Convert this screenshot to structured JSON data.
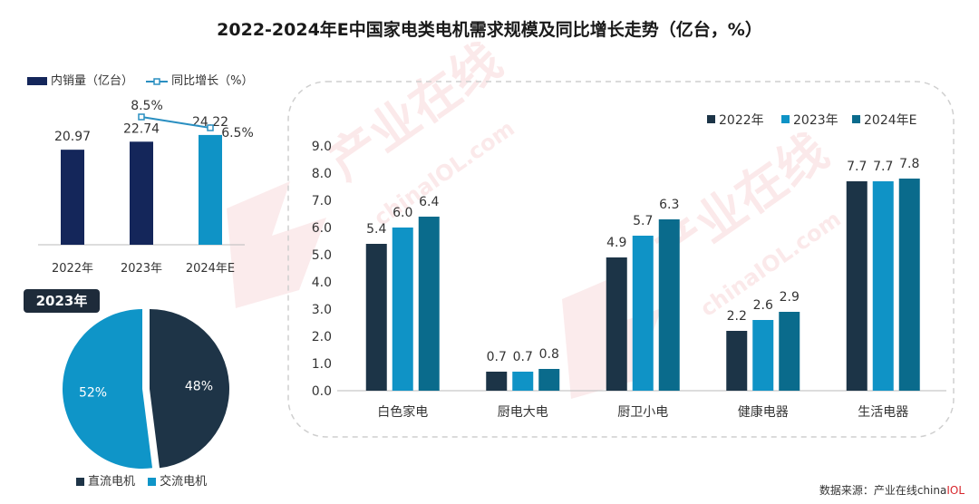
{
  "title": "2022-2024年E中国家电类电机需求规模及同比增长走势（亿台，%）",
  "source": {
    "prefix": "数据来源：产业在线china",
    "highlight": "IOL"
  },
  "watermark": {
    "text_cn": "产业在线",
    "text_en": "chinaIOL.com"
  },
  "colors": {
    "navy": "#14265a",
    "dark": "#1c3447",
    "blue": "#0f93c6",
    "teal": "#0a6b8c",
    "pie_dc": "#1e3447",
    "pie_ac": "#0f95c8",
    "line": "#2a8fc1"
  },
  "chart_data": [
    {
      "type": "bar",
      "name": "sales-volume-chart",
      "legend": {
        "bar": "内销量（亿台）",
        "line": "同比增长（%）"
      },
      "categories": [
        "2022年",
        "2023年",
        "2024年E"
      ],
      "series": [
        {
          "name": "内销量（亿台）",
          "values": [
            20.97,
            22.74,
            24.22
          ],
          "labels": [
            "20.97",
            "22.74",
            "24.22"
          ]
        },
        {
          "name": "同比增长（%）",
          "type": "line",
          "x": [
            "2023年",
            "2024年E"
          ],
          "values": [
            8.5,
            6.5
          ],
          "labels": [
            "8.5%",
            "6.5%"
          ]
        }
      ],
      "ylim": [
        0,
        26
      ]
    },
    {
      "type": "pie",
      "name": "motor-type-share-2023",
      "title": "2023年",
      "labels": [
        "直流电机",
        "交流电机"
      ],
      "values": [
        48,
        52
      ],
      "value_labels": [
        "48%",
        "52%"
      ]
    },
    {
      "type": "bar",
      "name": "category-demand-chart",
      "categories": [
        "白色家电",
        "厨电大电",
        "厨卫小电",
        "健康电器",
        "生活电器"
      ],
      "series": [
        {
          "name": "2022年",
          "values": [
            5.4,
            0.7,
            4.9,
            2.2,
            7.7
          ],
          "labels": [
            "5.4",
            "0.7",
            "4.9",
            "2.2",
            "7.7"
          ]
        },
        {
          "name": "2023年",
          "values": [
            6.0,
            0.7,
            5.7,
            2.6,
            7.7
          ],
          "labels": [
            "6.0",
            "0.7",
            "5.7",
            "2.6",
            "7.7"
          ]
        },
        {
          "name": "2024年E",
          "values": [
            6.4,
            0.8,
            6.3,
            2.9,
            7.8
          ],
          "labels": [
            "6.4",
            "0.8",
            "6.3",
            "2.9",
            "7.8"
          ]
        }
      ],
      "ylim": [
        0,
        9
      ],
      "yticks": [
        "0.0",
        "1.0",
        "2.0",
        "3.0",
        "4.0",
        "5.0",
        "6.0",
        "7.0",
        "8.0",
        "9.0"
      ],
      "legend_position": "top-right"
    }
  ]
}
